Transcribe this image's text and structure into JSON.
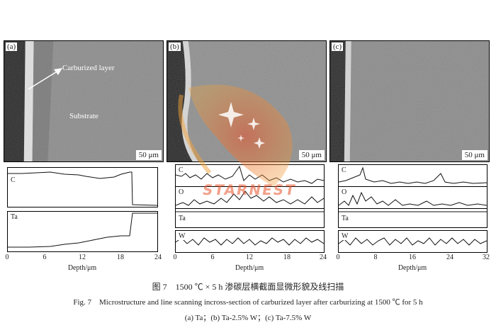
{
  "panels": [
    {
      "label": "(a)",
      "scale": "50 μm",
      "annotations": {
        "carburized": "Carburized layer",
        "substrate": "Substrate"
      }
    },
    {
      "label": "(b)",
      "scale": "50 μm"
    },
    {
      "label": "(c)",
      "scale": "50 μm"
    }
  ],
  "charts": [
    {
      "elements": [
        "C",
        "Ta"
      ],
      "x_ticks": [
        "0",
        "6",
        "12",
        "18",
        "24"
      ],
      "x_max": 24,
      "xlabel": "Depth/μm"
    },
    {
      "elements": [
        "C",
        "O",
        "Ta",
        "W"
      ],
      "x_ticks": [
        "0",
        "6",
        "12",
        "18",
        "24"
      ],
      "x_max": 24,
      "xlabel": "Depth/μm"
    },
    {
      "elements": [
        "C",
        "O",
        "Ta",
        "W"
      ],
      "x_ticks": [
        "0",
        "8",
        "16",
        "24",
        "32"
      ],
      "x_max": 32,
      "xlabel": "Depth/μm"
    }
  ],
  "caption": {
    "zh": "图 7　1500 ℃ × 5 h 渗碳层横截面显微形貌及线扫描",
    "en": "Fig. 7　Microstructure and line scanning incross-section of carburized layer after carburizing at 1500 ℃ for 5 h",
    "sub": "(a) Ta；(b) Ta-2.5% W；(c) Ta-7.5% W"
  },
  "watermark": "STARNEST"
}
